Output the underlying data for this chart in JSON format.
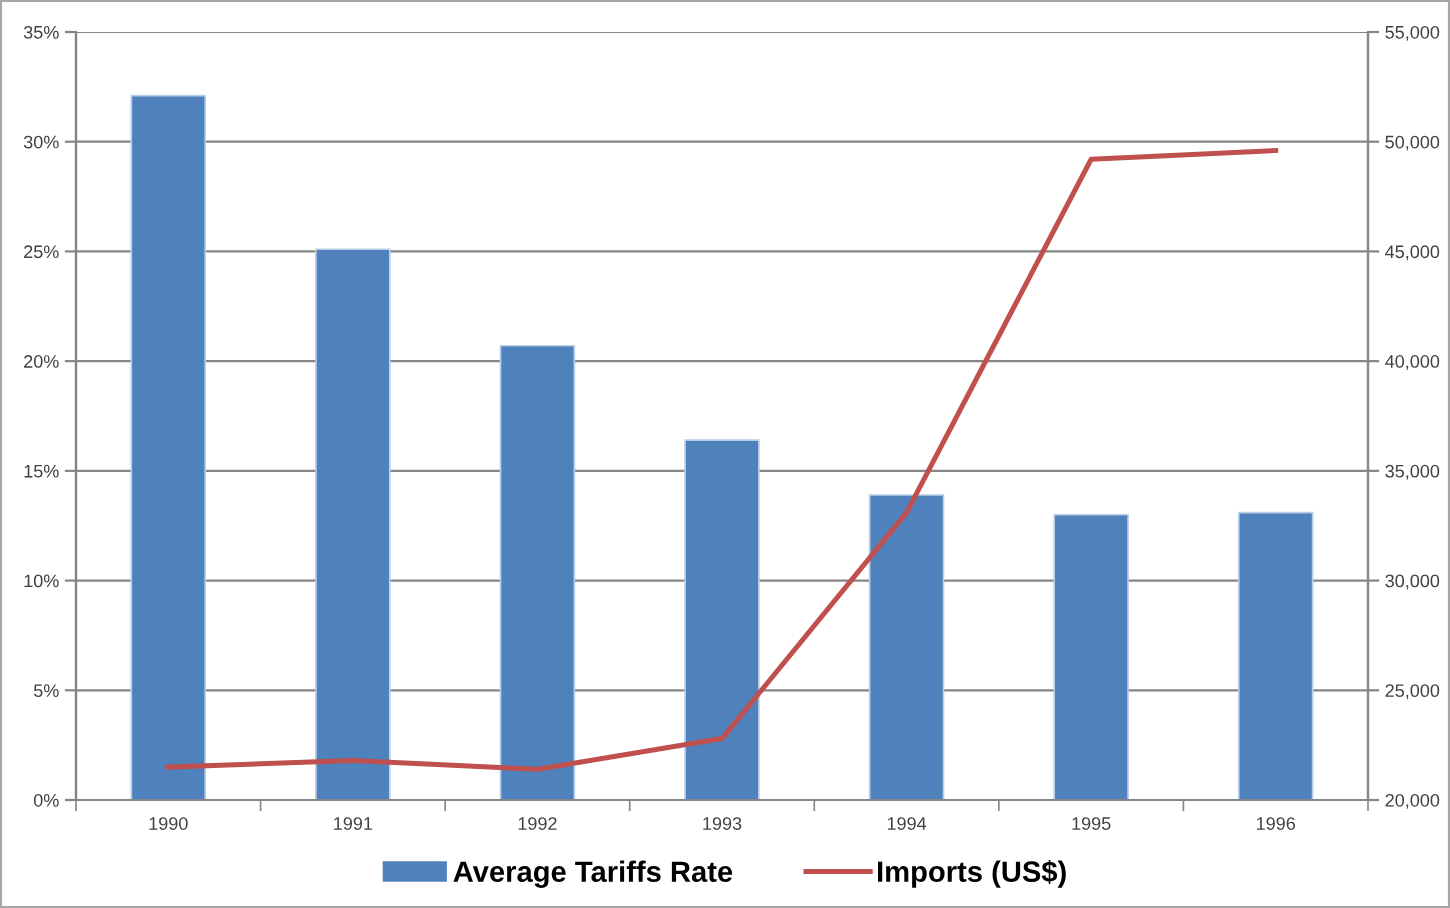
{
  "chart_data": {
    "type": "bar",
    "categories": [
      "1990",
      "1991",
      "1992",
      "1993",
      "1994",
      "1995",
      "1996"
    ],
    "series": [
      {
        "name": "Average Tariffs Rate",
        "color": "#4f81bd",
        "values": [
          32.1,
          25.1,
          20.7,
          16.4,
          13.9,
          13.0,
          13.1
        ]
      },
      {
        "name": "Imports (US$)",
        "type": "line",
        "axis": "y2",
        "color": "#c0504d",
        "values": [
          21500,
          21800,
          21400,
          22800,
          33100,
          49200,
          49600
        ]
      }
    ],
    "ylim": [
      0,
      35
    ],
    "yticks": [
      {
        "value": 0,
        "label": "0%"
      },
      {
        "value": 5,
        "label": "5%"
      },
      {
        "value": 10,
        "label": "10%"
      },
      {
        "value": 15,
        "label": "15%"
      },
      {
        "value": 20,
        "label": "20%"
      },
      {
        "value": 25,
        "label": "25%"
      },
      {
        "value": 30,
        "label": "30%"
      },
      {
        "value": 35,
        "label": "35%"
      }
    ],
    "y2lim": [
      20000,
      55000
    ],
    "y2ticks": [
      {
        "value": 20000,
        "label": "20,000"
      },
      {
        "value": 25000,
        "label": "25,000"
      },
      {
        "value": 30000,
        "label": "30,000"
      },
      {
        "value": 35000,
        "label": "35,000"
      },
      {
        "value": 40000,
        "label": "40,000"
      },
      {
        "value": 45000,
        "label": "45,000"
      },
      {
        "value": 50000,
        "label": "50,000"
      },
      {
        "value": 55000,
        "label": "55,000"
      }
    ],
    "grid": "y",
    "legend": "bottom",
    "marker": "none",
    "line_style": "solid"
  }
}
